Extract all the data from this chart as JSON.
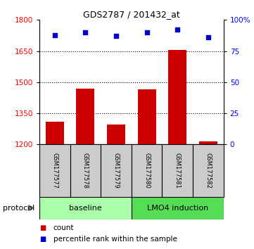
{
  "title": "GDS2787 / 201432_at",
  "samples": [
    "GSM177577",
    "GSM177578",
    "GSM177579",
    "GSM177580",
    "GSM177581",
    "GSM177582"
  ],
  "counts": [
    1310,
    1470,
    1295,
    1465,
    1655,
    1215
  ],
  "percentile_ranks": [
    88,
    90,
    87,
    90,
    92,
    86
  ],
  "bar_color": "#cc0000",
  "dot_color": "#0000cc",
  "ylim_left": [
    1200,
    1800
  ],
  "yticks_left": [
    1200,
    1350,
    1500,
    1650,
    1800
  ],
  "ylim_right": [
    0,
    100
  ],
  "yticks_right": [
    0,
    25,
    50,
    75,
    100
  ],
  "ytick_labels_right": [
    "0",
    "25",
    "50",
    "75",
    "100%"
  ],
  "legend_count_label": "count",
  "legend_percentile_label": "percentile rank within the sample",
  "protocol_label": "protocol",
  "group_label_baseline": "baseline",
  "group_label_lmo4": "LMO4 induction",
  "sample_bg_color": "#cccccc",
  "baseline_color": "#aaffaa",
  "lmo4_color": "#55dd55"
}
